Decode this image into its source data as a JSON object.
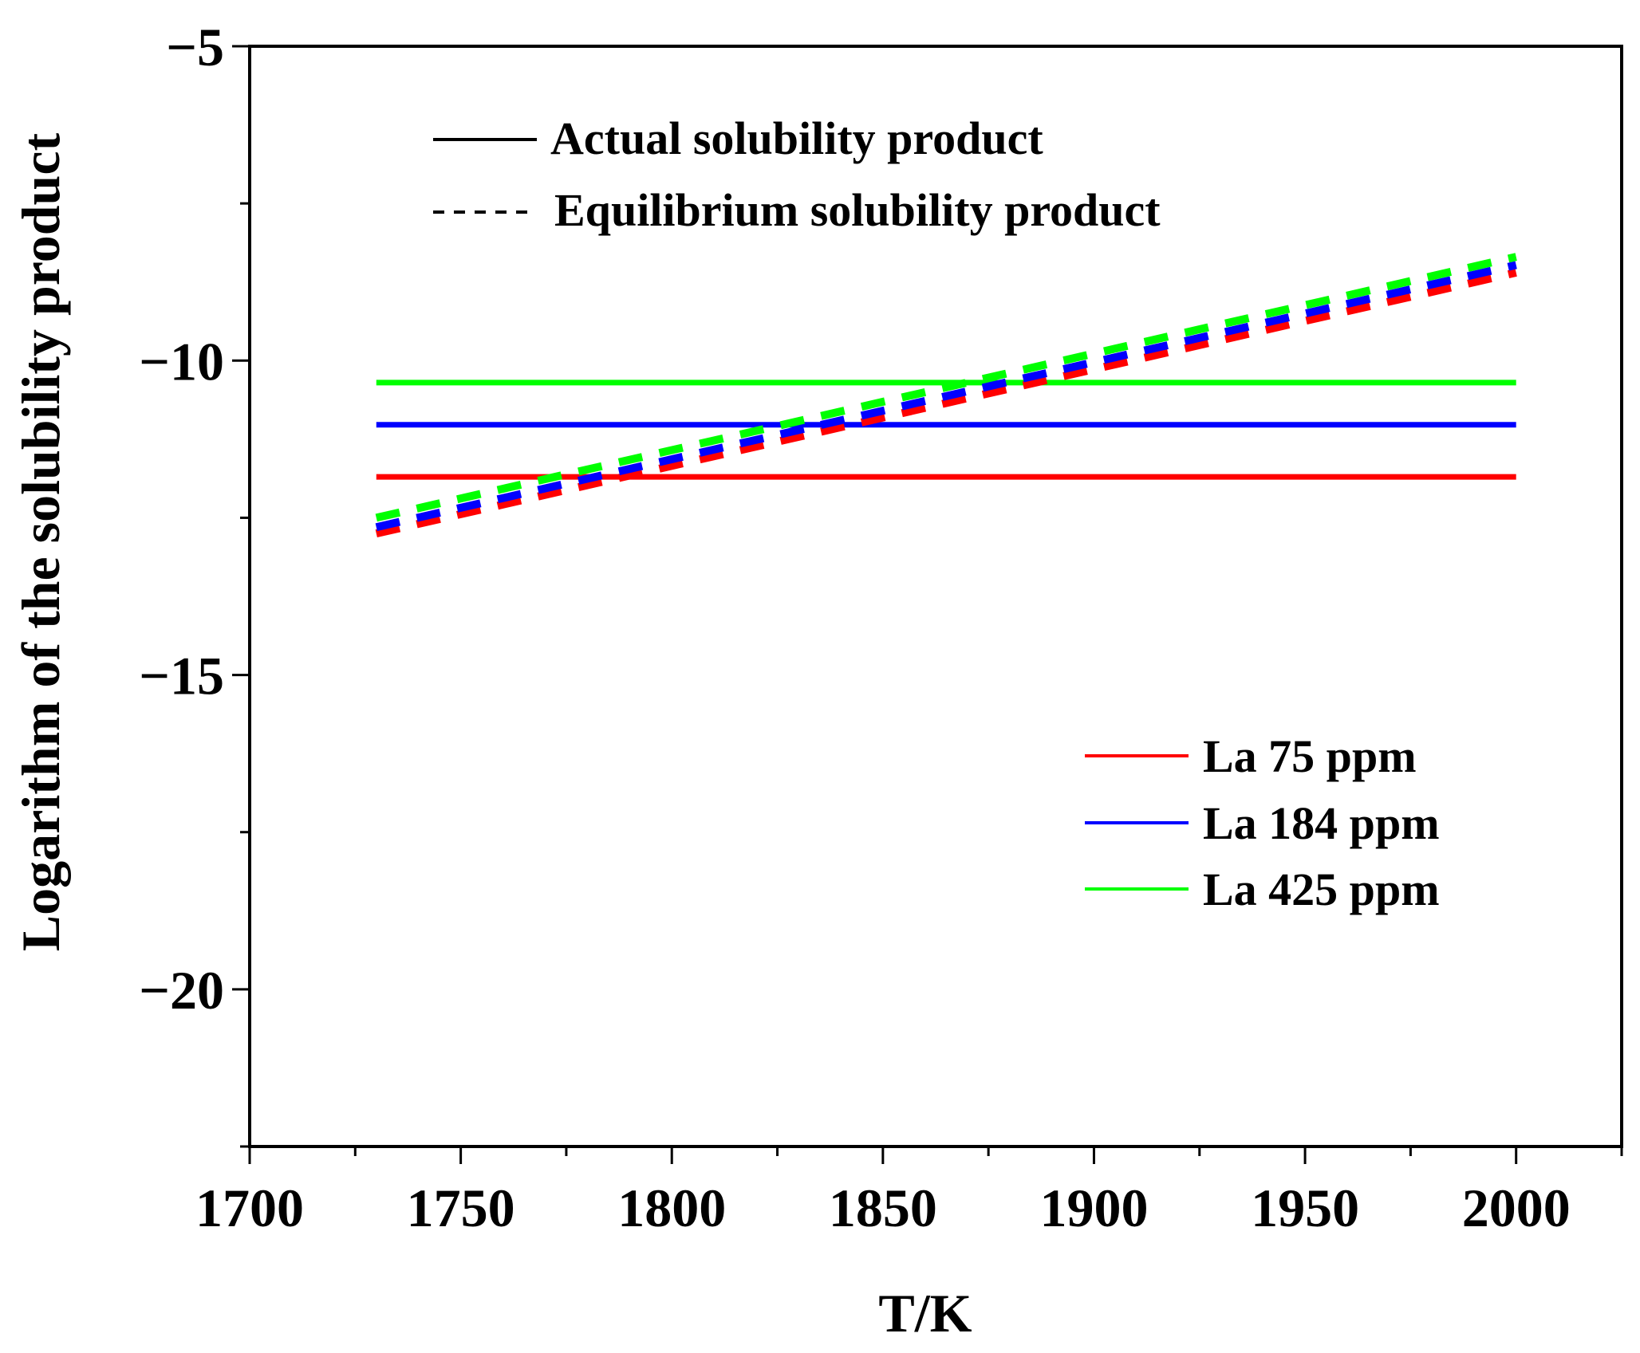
{
  "chart_data": {
    "type": "line",
    "xlabel": "T/K",
    "ylabel": "Logarithm of the solubility product",
    "xlim": [
      1700,
      2025
    ],
    "ylim": [
      -22.5,
      -5
    ],
    "xticks": [
      1700,
      1750,
      1800,
      1850,
      1900,
      1950,
      2000
    ],
    "xtick_labels": [
      "1700",
      "1750",
      "1800",
      "1850",
      "1900",
      "1950",
      "2000"
    ],
    "yticks": [
      -5,
      -10,
      -15,
      -20
    ],
    "ytick_labels": [
      "−5",
      "−10",
      "−15",
      "−20"
    ],
    "style_legend": [
      {
        "label": "Actual solubility product",
        "style": "solid",
        "color": "#000000"
      },
      {
        "label": "Equilibrium solubility product",
        "style": "dashed",
        "color": "#000000"
      }
    ],
    "series_legend": [
      {
        "label": "La 75 ppm",
        "color": "#ff0000"
      },
      {
        "label": "La 184 ppm",
        "color": "#0000ff"
      },
      {
        "label": "La 425 ppm",
        "color": "#00ff00"
      }
    ],
    "series": [
      {
        "name": "La 75 ppm actual",
        "style": "solid",
        "color": "#ff0000",
        "x": [
          1730,
          2000
        ],
        "y": [
          -11.85,
          -11.85
        ]
      },
      {
        "name": "La 184 ppm actual",
        "style": "solid",
        "color": "#0000ff",
        "x": [
          1730,
          2000
        ],
        "y": [
          -11.02,
          -11.02
        ]
      },
      {
        "name": "La 425 ppm actual",
        "style": "solid",
        "color": "#00ff00",
        "x": [
          1730,
          2000
        ],
        "y": [
          -10.35,
          -10.35
        ]
      },
      {
        "name": "La 75 ppm equilibrium",
        "style": "dashed",
        "color": "#ff0000",
        "x": [
          1730,
          2000
        ],
        "y": [
          -12.75,
          -8.6
        ]
      },
      {
        "name": "La 184 ppm equilibrium",
        "style": "dashed",
        "color": "#0000ff",
        "x": [
          1730,
          2000
        ],
        "y": [
          -12.65,
          -8.48
        ]
      },
      {
        "name": "La 425 ppm equilibrium",
        "style": "dashed",
        "color": "#00ff00",
        "x": [
          1730,
          2000
        ],
        "y": [
          -12.5,
          -8.35
        ]
      }
    ]
  }
}
